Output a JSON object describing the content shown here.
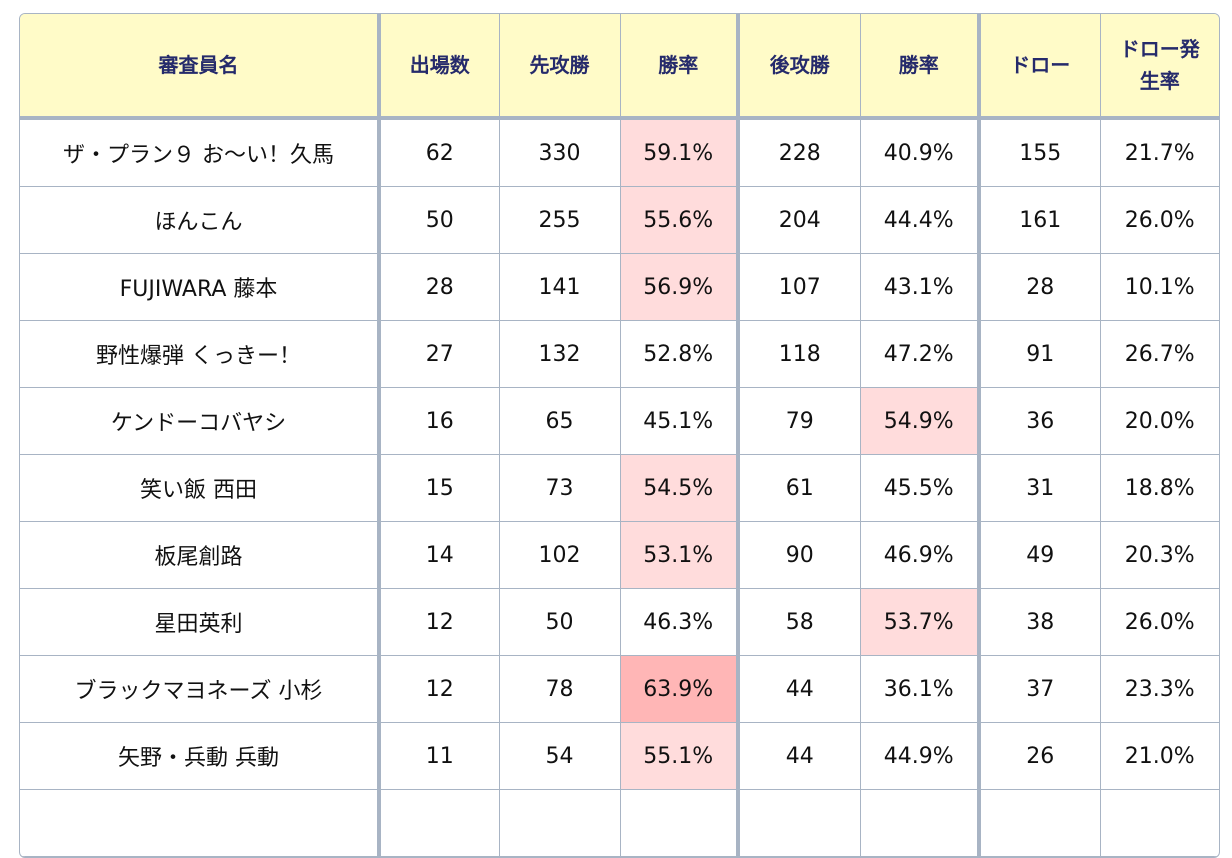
{
  "headers": [
    "審査員名",
    "出場数",
    "先攻勝",
    "勝率",
    "後攻勝",
    "勝率",
    "ドロー",
    "ドロー発生率"
  ],
  "colors": {
    "header_bg": "#fffbc8",
    "header_text": "#252a6b",
    "highlight": "#ffdcdc",
    "highlight_strong": "#ffb6b6",
    "border": "#a8b4c4"
  },
  "rows": [
    {
      "name": "ザ・プラン９ お～い！久馬",
      "appearances": "62",
      "first_wins": "330",
      "first_rate": "59.1%",
      "second_wins": "228",
      "second_rate": "40.9%",
      "draws": "155",
      "draw_rate": "21.7%",
      "first_level": "high",
      "second_level": "none"
    },
    {
      "name": "ほんこん",
      "appearances": "50",
      "first_wins": "255",
      "first_rate": "55.6%",
      "second_wins": "204",
      "second_rate": "44.4%",
      "draws": "161",
      "draw_rate": "26.0%",
      "first_level": "high",
      "second_level": "none"
    },
    {
      "name": "FUJIWARA 藤本",
      "appearances": "28",
      "first_wins": "141",
      "first_rate": "56.9%",
      "second_wins": "107",
      "second_rate": "43.1%",
      "draws": "28",
      "draw_rate": "10.1%",
      "first_level": "high",
      "second_level": "none"
    },
    {
      "name": "野性爆弾 くっきー！",
      "appearances": "27",
      "first_wins": "132",
      "first_rate": "52.8%",
      "second_wins": "118",
      "second_rate": "47.2%",
      "draws": "91",
      "draw_rate": "26.7%",
      "first_level": "none",
      "second_level": "none"
    },
    {
      "name": "ケンドーコバヤシ",
      "appearances": "16",
      "first_wins": "65",
      "first_rate": "45.1%",
      "second_wins": "79",
      "second_rate": "54.9%",
      "draws": "36",
      "draw_rate": "20.0%",
      "first_level": "none",
      "second_level": "high"
    },
    {
      "name": "笑い飯 西田",
      "appearances": "15",
      "first_wins": "73",
      "first_rate": "54.5%",
      "second_wins": "61",
      "second_rate": "45.5%",
      "draws": "31",
      "draw_rate": "18.8%",
      "first_level": "high",
      "second_level": "none"
    },
    {
      "name": "板尾創路",
      "appearances": "14",
      "first_wins": "102",
      "first_rate": "53.1%",
      "second_wins": "90",
      "second_rate": "46.9%",
      "draws": "49",
      "draw_rate": "20.3%",
      "first_level": "high",
      "second_level": "none"
    },
    {
      "name": "星田英利",
      "appearances": "12",
      "first_wins": "50",
      "first_rate": "46.3%",
      "second_wins": "58",
      "second_rate": "53.7%",
      "draws": "38",
      "draw_rate": "26.0%",
      "first_level": "none",
      "second_level": "high"
    },
    {
      "name": "ブラックマヨネーズ 小杉",
      "appearances": "12",
      "first_wins": "78",
      "first_rate": "63.9%",
      "second_wins": "44",
      "second_rate": "36.1%",
      "draws": "37",
      "draw_rate": "23.3%",
      "first_level": "very-high",
      "second_level": "none"
    },
    {
      "name": "矢野・兵動 兵動",
      "appearances": "11",
      "first_wins": "54",
      "first_rate": "55.1%",
      "second_wins": "44",
      "second_rate": "44.9%",
      "draws": "26",
      "draw_rate": "21.0%",
      "first_level": "high",
      "second_level": "none"
    }
  ]
}
